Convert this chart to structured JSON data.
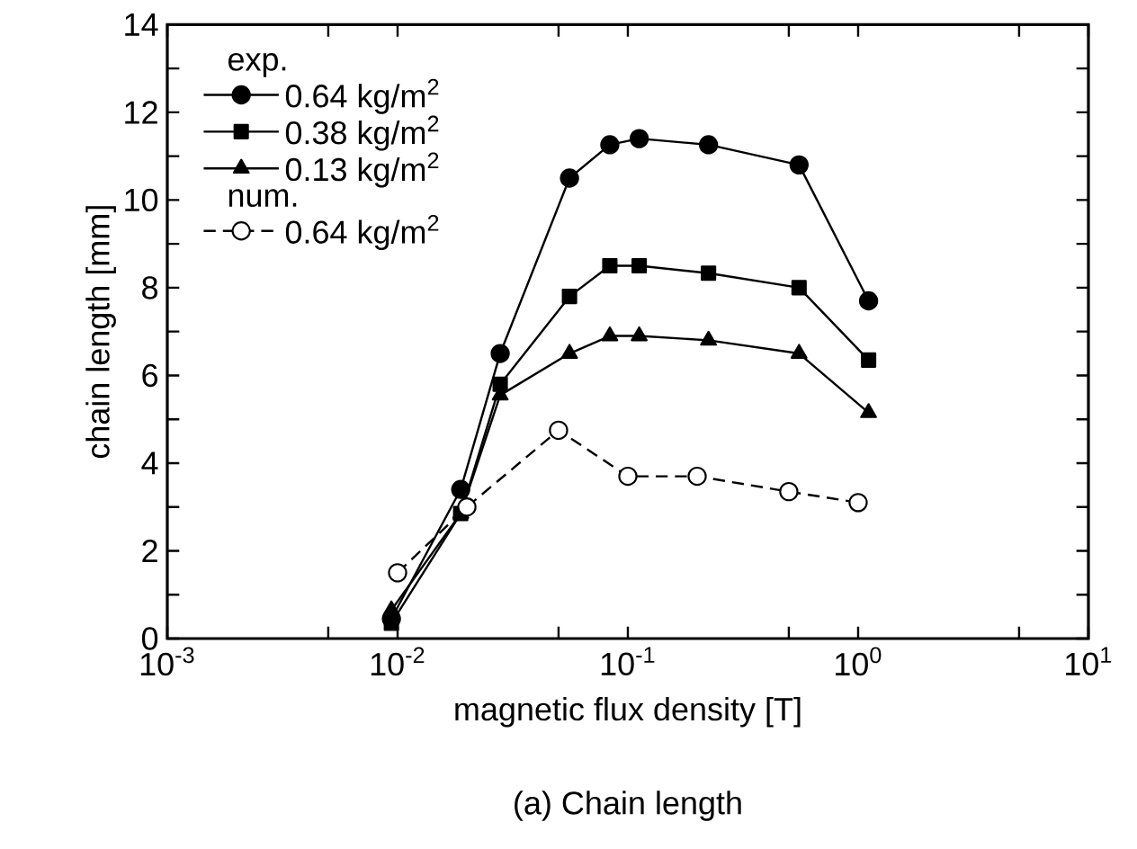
{
  "chart_data": {
    "type": "line",
    "xlabel": "magnetic flux density [T]",
    "ylabel": "chain length [mm]",
    "annotations": [
      "exp.",
      "num.",
      "(a) Chain length"
    ],
    "log": "x",
    "xlim": [
      0.001,
      10
    ],
    "xticks": [
      {
        "value": 0.001,
        "label": "10$^{-3}$"
      },
      {
        "value": 0.01,
        "label": "10$^{-2}$"
      },
      {
        "value": 0.1,
        "label": "10$^{-1}$"
      },
      {
        "value": 1,
        "label": "10$^{0}$"
      },
      {
        "value": 10,
        "label": "10$^{1}$"
      }
    ],
    "ylim": [
      0,
      14
    ],
    "yticks": [
      0,
      2,
      4,
      6,
      8,
      10,
      12,
      14
    ],
    "legend": "top left",
    "grid": false,
    "series": [
      {
        "name": "0.64 kg/m$^{2}$",
        "color": "#000000",
        "marker": "circle",
        "line_style": "solid",
        "x": [
          0.0094,
          0.0188,
          0.0279,
          0.0558,
          0.0835,
          0.112,
          0.224,
          0.554,
          1.11
        ],
        "values": [
          0.45,
          3.4,
          6.5,
          10.5,
          11.26,
          11.4,
          11.26,
          10.8,
          7.7
        ]
      },
      {
        "name": "0.38 kg/m$^{2}$",
        "color": "#000000",
        "marker": "square",
        "line_style": "solid",
        "x": [
          0.0094,
          0.0188,
          0.0279,
          0.0558,
          0.0835,
          0.112,
          0.224,
          0.554,
          1.11
        ],
        "values": [
          0.35,
          2.85,
          5.8,
          7.8,
          8.5,
          8.5,
          8.33,
          8.0,
          6.35
        ]
      },
      {
        "name": "0.13 kg/m$^{2}$",
        "color": "#000000",
        "marker": "triangle",
        "line_style": "solid",
        "x": [
          0.0094,
          0.0188,
          0.0279,
          0.0558,
          0.0835,
          0.112,
          0.224,
          0.554,
          1.11
        ],
        "values": [
          0.65,
          2.85,
          5.55,
          6.5,
          6.9,
          6.9,
          6.8,
          6.5,
          5.15
        ]
      },
      {
        "name": "0.64 kg/m$^{2}$",
        "color": "#000000",
        "marker": "circle",
        "line_style": "dashed",
        "x": [
          0.01,
          0.02,
          0.05,
          0.1,
          0.2,
          0.5,
          1
        ],
        "values": [
          1.5,
          3.0,
          4.75,
          3.7,
          3.7,
          3.35,
          3.1
        ]
      }
    ]
  }
}
